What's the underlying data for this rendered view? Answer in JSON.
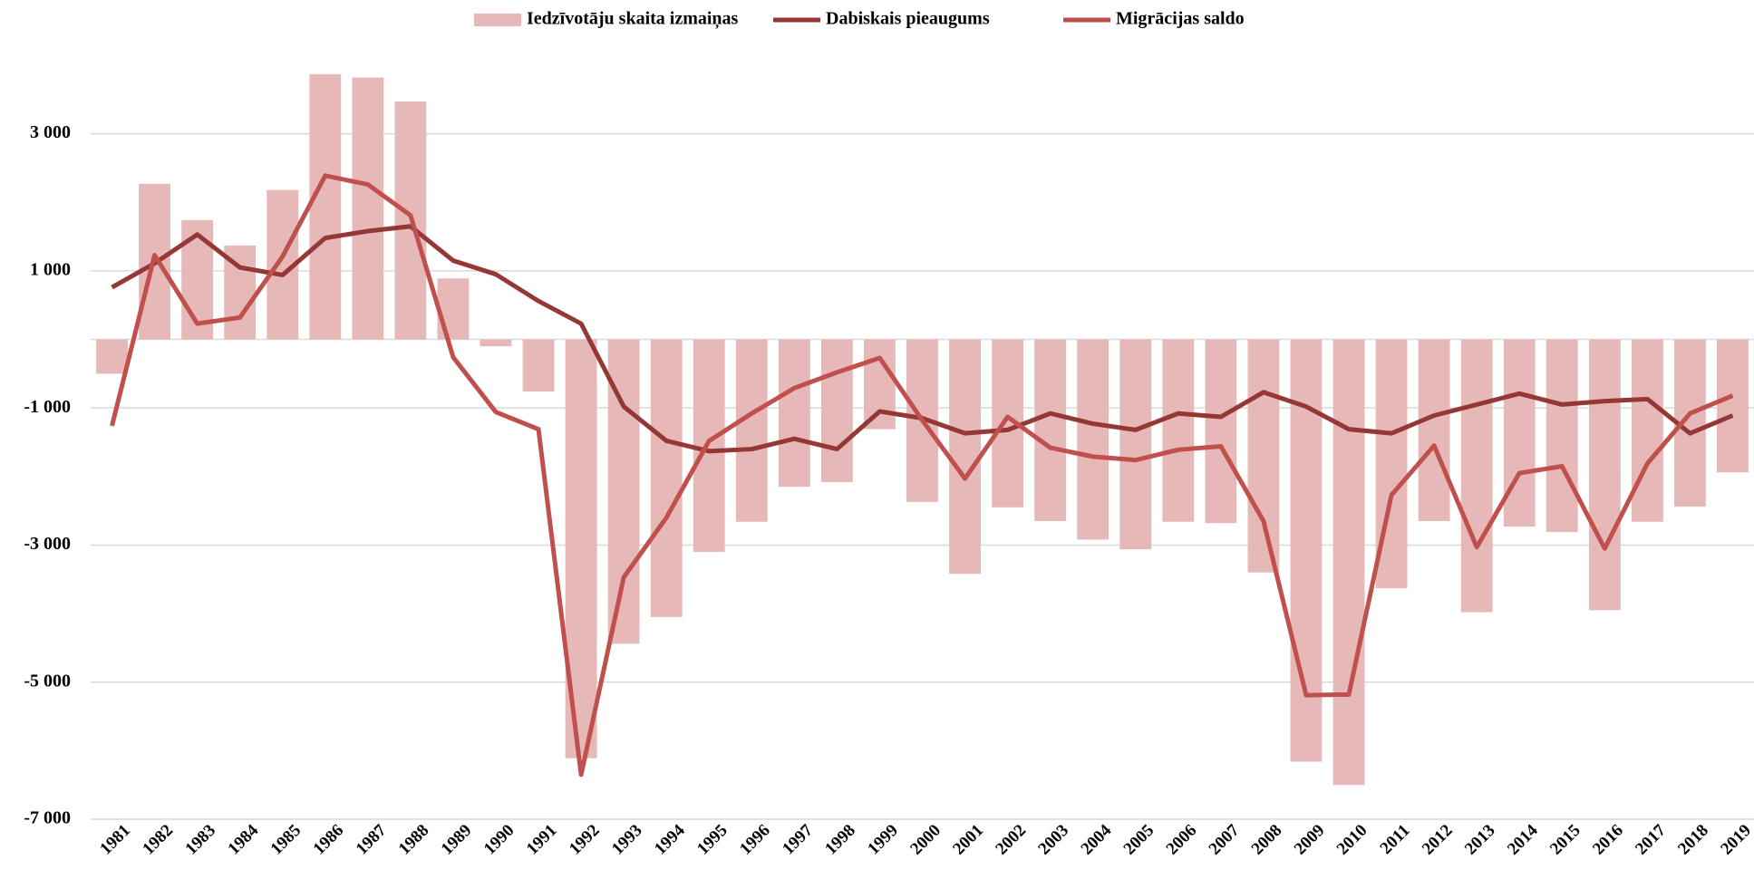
{
  "chart_data": {
    "type": "bar_line",
    "categories": [
      "1981",
      "1982",
      "1983",
      "1984",
      "1985",
      "1986",
      "1987",
      "1988",
      "1989",
      "1990",
      "1991",
      "1992",
      "1993",
      "1994",
      "1995",
      "1996",
      "1997",
      "1998",
      "1999",
      "2000",
      "2001",
      "2002",
      "2003",
      "2004",
      "2005",
      "2006",
      "2007",
      "2008",
      "2009",
      "2010",
      "2011",
      "2012",
      "2013",
      "2014",
      "2015",
      "2016",
      "2017",
      "2018",
      "2019"
    ],
    "series": [
      {
        "name": "Iedzīvotāju skaita izmaiņas",
        "type": "bar",
        "color": "#e6b8b7",
        "values": [
          -500,
          2270,
          1740,
          1370,
          2180,
          3870,
          3820,
          3470,
          890,
          -100,
          -760,
          -6110,
          -4440,
          -4050,
          -3100,
          -2660,
          -2150,
          -2080,
          -1310,
          -2370,
          -3420,
          -2450,
          -2650,
          -2920,
          -3060,
          -2660,
          -2680,
          -3400,
          -6160,
          -6500,
          -3630,
          -2650,
          -3980,
          -2730,
          -2810,
          -3950,
          -2660,
          -2440,
          -1940
        ]
      },
      {
        "name": "Dabiskais pieaugums",
        "type": "line",
        "color": "#953735",
        "values": [
          760,
          1110,
          1530,
          1050,
          940,
          1480,
          1580,
          1650,
          1150,
          950,
          560,
          230,
          -980,
          -1480,
          -1630,
          -1600,
          -1450,
          -1600,
          -1050,
          -1150,
          -1370,
          -1320,
          -1080,
          -1230,
          -1320,
          -1080,
          -1130,
          -770,
          -980,
          -1310,
          -1370,
          -1110,
          -950,
          -790,
          -950,
          -900,
          -870,
          -1370,
          -1110
        ]
      },
      {
        "name": "Migrācijas saldo",
        "type": "line",
        "color": "#c0504d",
        "values": [
          -1260,
          1230,
          230,
          320,
          1210,
          2390,
          2260,
          1810,
          -260,
          -1060,
          -1310,
          -6350,
          -3470,
          -2600,
          -1480,
          -1080,
          -710,
          -480,
          -270,
          -1180,
          -2030,
          -1130,
          -1580,
          -1710,
          -1760,
          -1610,
          -1560,
          -2650,
          -5190,
          -5180,
          -2270,
          -1550,
          -3030,
          -1950,
          -1850,
          -3050,
          -1810,
          -1080,
          -820
        ]
      }
    ],
    "ylim": [
      -7000,
      4000
    ],
    "yticks": [
      {
        "value": -7000,
        "label": "-7 000"
      },
      {
        "value": -5000,
        "label": "-5 000"
      },
      {
        "value": -3000,
        "label": "-3 000"
      },
      {
        "value": -1000,
        "label": "-1 000"
      },
      {
        "value": 1000,
        "label": "1 000"
      },
      {
        "value": 3000,
        "label": "3 000"
      }
    ],
    "grid": true,
    "legend": "top"
  }
}
